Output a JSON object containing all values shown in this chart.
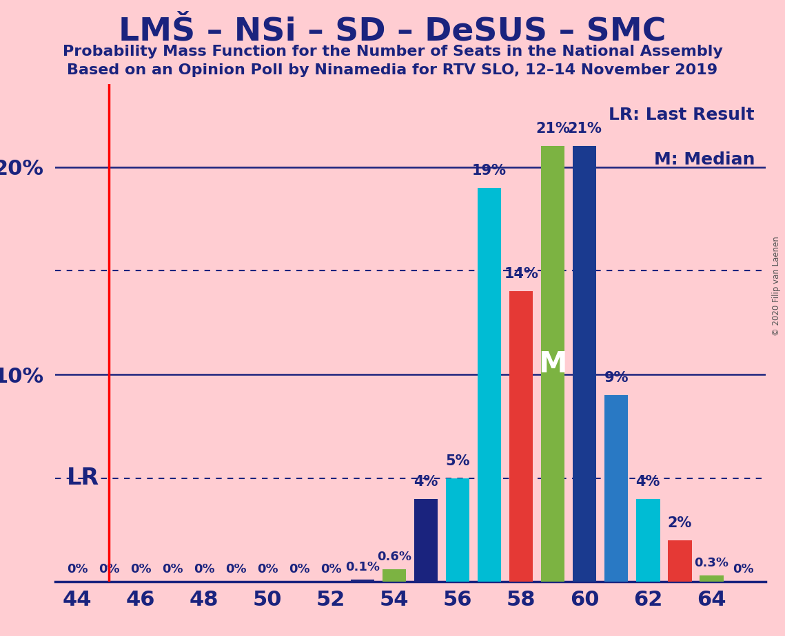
{
  "title1": "LMŠ – NSi – SD – DeSUS – SMC",
  "title2": "Probability Mass Function for the Number of Seats in the National Assembly",
  "title3": "Based on an Opinion Poll by Ninamedia for RTV SLO, 12–14 November 2019",
  "copyright": "© 2020 Filip van Laenen",
  "background_color": "#FFCDD2",
  "lr_x": 45,
  "lr_label": "LR",
  "median_label": "M",
  "median_seat": 59,
  "legend_lr": "LR: Last Result",
  "legend_m": "M: Median",
  "seats": [
    44,
    45,
    46,
    47,
    48,
    49,
    50,
    51,
    52,
    53,
    54,
    55,
    56,
    57,
    58,
    59,
    60,
    61,
    62,
    63,
    64,
    65
  ],
  "values": [
    0.0,
    0.0,
    0.0,
    0.0,
    0.0,
    0.0,
    0.0,
    0.0,
    0.0,
    0.1,
    0.6,
    4.0,
    5.0,
    19.0,
    14.0,
    21.0,
    21.0,
    9.0,
    4.0,
    2.0,
    0.3,
    0.0
  ],
  "colors": [
    "#1a237e",
    "#1a237e",
    "#1a237e",
    "#1a237e",
    "#1a237e",
    "#1a237e",
    "#1a237e",
    "#1a237e",
    "#1a237e",
    "#1a237e",
    "#7cb342",
    "#1a237e",
    "#00BCD4",
    "#00BCD4",
    "#e53935",
    "#7cb342",
    "#1a3a8f",
    "#2979c4",
    "#00BCD4",
    "#e53935",
    "#7cb342",
    "#1a237e"
  ],
  "labels": [
    "0%",
    "0%",
    "0%",
    "0%",
    "0%",
    "0%",
    "0%",
    "0%",
    "0%",
    "0.1%",
    "0.6%",
    "4%",
    "5%",
    "19%",
    "14%",
    "21%",
    "21%",
    "9%",
    "4%",
    "2%",
    "0.3%",
    "0%"
  ],
  "xticks": [
    44,
    46,
    48,
    50,
    52,
    54,
    56,
    58,
    60,
    62,
    64
  ],
  "xlim": [
    43.3,
    65.7
  ],
  "ylim": [
    0,
    24
  ],
  "solid_ylines": [
    10,
    20
  ],
  "dotted_ylines": [
    5,
    15
  ]
}
